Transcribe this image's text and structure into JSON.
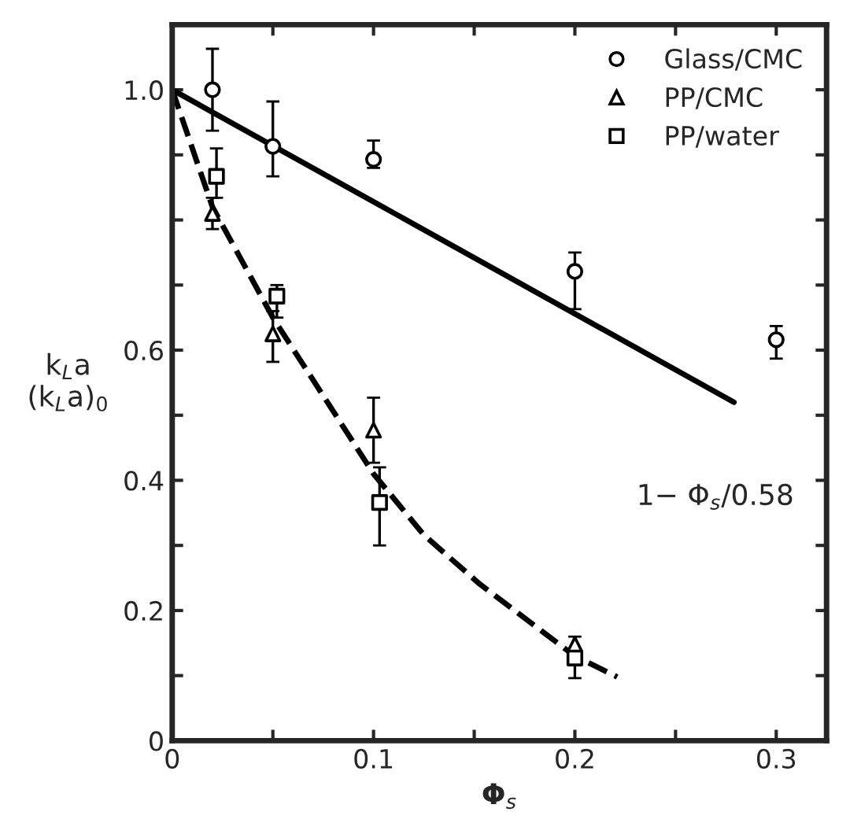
{
  "chart_data": {
    "type": "scatter",
    "xlabel": "Φ$_{s}$",
    "ylabel": "k$_{L}$a\n(k$_{L}$a)$_{0}$",
    "xlim": [
      0,
      0.325
    ],
    "ylim": [
      0,
      1.1
    ],
    "xticks": [
      0,
      {
        "value": 0.05,
        "label": null
      },
      0.1,
      {
        "value": 0.15,
        "label": null
      },
      0.2,
      {
        "value": 0.25,
        "label": null
      },
      0.3
    ],
    "yticks": [
      0,
      {
        "value": 0.1,
        "label": null
      },
      0.2,
      {
        "value": 0.3,
        "label": null
      },
      0.4,
      {
        "value": 0.5,
        "label": null
      },
      0.6,
      {
        "value": 0.7,
        "label": null
      },
      {
        "value": 0.8,
        "label": null
      },
      {
        "value": 0.9,
        "label": null
      },
      {
        "value": 1.0,
        "label": "1.0"
      }
    ],
    "legend": "top right",
    "grid": false,
    "annotations": [
      "1− Φ$_{s}$/0.58"
    ],
    "series": [
      {
        "name": "Glass/CMC",
        "color": "#000000",
        "marker": "circle",
        "x": [
          0.02,
          0.05,
          0.1,
          0.2,
          0.3
        ],
        "values": [
          1.0,
          0.913,
          0.893,
          0.721,
          0.616
        ],
        "errors": [
          [
            0.937,
            1.063
          ],
          [
            0.867,
            0.982
          ],
          [
            0.88,
            0.922
          ],
          [
            0.663,
            0.75
          ],
          [
            0.587,
            0.637
          ]
        ]
      },
      {
        "name": "PP/CMC",
        "color": "#000000",
        "marker": "triangle",
        "x": [
          0.02,
          0.05,
          0.1,
          0.2
        ],
        "values": [
          0.81,
          0.625,
          0.477,
          0.148
        ],
        "errors": [
          [
            0.786,
            0.834
          ],
          [
            0.582,
            0.66
          ],
          [
            0.427,
            0.527
          ],
          null
        ]
      },
      {
        "name": "PP/water",
        "color": "#000000",
        "marker": "square",
        "x": [
          0.022,
          0.052,
          0.103,
          0.2
        ],
        "values": [
          0.867,
          0.683,
          0.366,
          0.127
        ],
        "errors": [
          [
            0.834,
            0.91
          ],
          [
            0.65,
            0.7
          ],
          [
            0.3,
            0.42
          ],
          [
            0.096,
            0.16
          ]
        ]
      },
      {
        "type": "line",
        "color": "#000000",
        "line_style": "solid",
        "marker": "none",
        "x": [
          0,
          0.279
        ],
        "values": [
          1.0,
          0.52
        ]
      },
      {
        "type": "line",
        "color": "#000000",
        "line_style": "dashed",
        "marker": "none",
        "x": [
          0,
          0.02,
          0.05,
          0.1,
          0.125,
          0.153,
          0.2,
          0.221
        ],
        "values": [
          1.0,
          0.82,
          0.65,
          0.41,
          0.316,
          0.24,
          0.13,
          0.098
        ]
      }
    ]
  }
}
